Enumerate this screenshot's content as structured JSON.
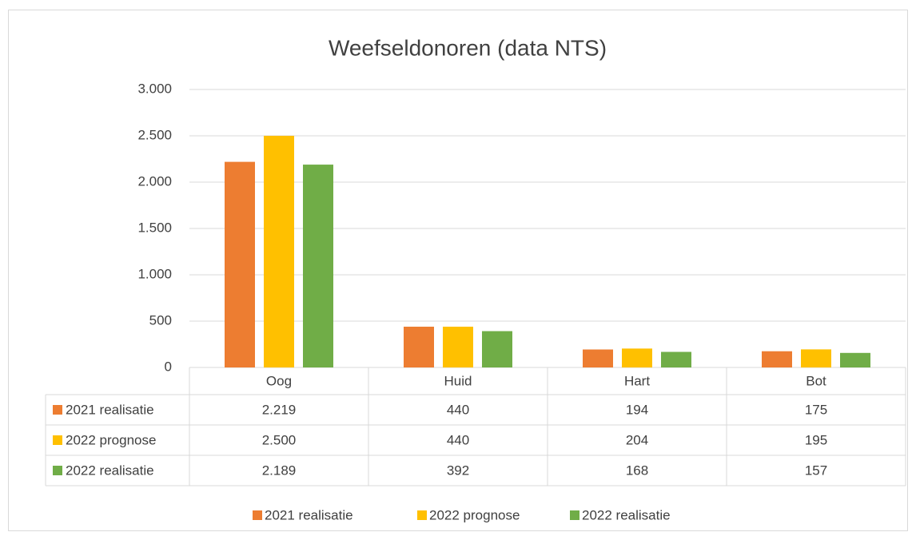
{
  "chart_data": {
    "type": "bar",
    "title": "Weefseldonoren (data NTS)",
    "categories": [
      "Oog",
      "Huid",
      "Hart",
      "Bot"
    ],
    "series": [
      {
        "name": "2021 realisatie",
        "color": "#ED7D31",
        "values": [
          2219,
          440,
          194,
          175
        ],
        "value_labels": [
          "2.219",
          "440",
          "194",
          "175"
        ]
      },
      {
        "name": "2022 prognose",
        "color": "#FFC000",
        "values": [
          2500,
          440,
          204,
          195
        ],
        "value_labels": [
          "2.500",
          "440",
          "204",
          "195"
        ]
      },
      {
        "name": "2022 realisatie",
        "color": "#70AD47",
        "values": [
          2189,
          392,
          168,
          157
        ],
        "value_labels": [
          "2.189",
          "392",
          "168",
          "157"
        ]
      }
    ],
    "ylim": [
      0,
      3000
    ],
    "yticks": [
      0,
      500,
      {
        "value": 1000,
        "label": "1.000"
      },
      {
        "value": 1500,
        "label": "1.500"
      },
      {
        "value": 2000,
        "label": "2.000"
      },
      {
        "value": 2500,
        "label": "2.500"
      },
      {
        "value": 3000,
        "label": "3.000"
      }
    ],
    "grid": true,
    "legend": "bottom"
  }
}
